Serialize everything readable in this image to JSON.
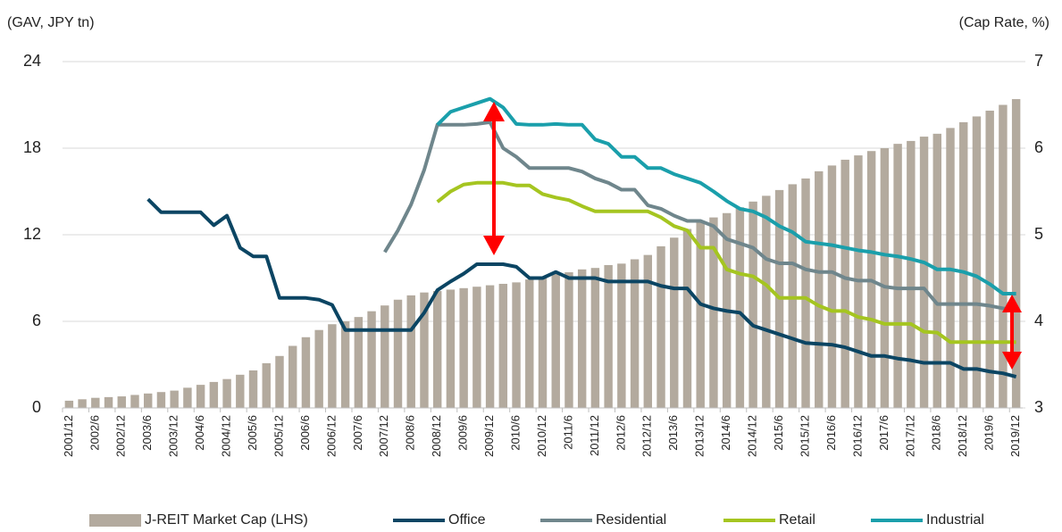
{
  "chart_data": {
    "type": "bar",
    "y_label": "(GAV, JPY tn)",
    "y2_label": "(Cap Rate, %)",
    "categories": [
      "2001/12",
      null,
      "2002/6",
      null,
      "2002/12",
      null,
      "2003/6",
      null,
      "2003/12",
      null,
      "2004/6",
      null,
      "2004/12",
      null,
      "2005/6",
      null,
      "2005/12",
      null,
      "2006/6",
      null,
      "2006/12",
      null,
      "2007/6",
      null,
      "2007/12",
      null,
      "2008/6",
      null,
      "2008/12",
      null,
      "2009/6",
      null,
      "2009/12",
      null,
      "2010/6",
      null,
      "2010/12",
      null,
      "2011/6",
      null,
      "2011/12",
      null,
      "2012/6",
      null,
      "2012/12",
      null,
      "2013/6",
      null,
      "2013/12",
      null,
      "2014/6",
      null,
      "2014/12",
      null,
      "2015/6",
      null,
      "2015/12",
      null,
      "2016/6",
      null,
      "2016/12",
      null,
      "2017/6",
      null,
      "2017/12",
      null,
      "2018/6",
      null,
      "2018/12",
      null,
      "2019/6",
      null,
      "2019/12"
    ],
    "ylim": [
      0,
      24
    ],
    "yticks": [
      0,
      6,
      12,
      18,
      24
    ],
    "y2lim": [
      3,
      7
    ],
    "y2ticks": [
      3,
      4,
      5,
      6,
      7
    ],
    "grid": true,
    "legend": "bottom",
    "series": [
      {
        "name": "J-REIT Market Cap (LHS)",
        "type": "bar",
        "color": "#b3aa9e",
        "values": [
          0.5,
          0.6,
          0.7,
          0.75,
          0.8,
          0.9,
          1.0,
          1.1,
          1.2,
          1.4,
          1.6,
          1.8,
          2.0,
          2.3,
          2.6,
          3.1,
          3.6,
          4.3,
          4.9,
          5.4,
          5.8,
          6.0,
          6.3,
          6.7,
          7.1,
          7.5,
          7.8,
          8.0,
          8.1,
          8.2,
          8.3,
          8.4,
          8.5,
          8.6,
          8.7,
          8.9,
          9.1,
          9.3,
          9.4,
          9.6,
          9.7,
          9.9,
          10.0,
          10.3,
          10.6,
          11.2,
          11.8,
          12.4,
          12.9,
          13.2,
          13.5,
          13.9,
          14.3,
          14.7,
          15.1,
          15.5,
          15.9,
          16.4,
          16.8,
          17.2,
          17.5,
          17.8,
          18.0,
          18.3,
          18.5,
          18.8,
          19.0,
          19.4,
          19.8,
          20.2,
          20.6,
          21.0,
          21.4
        ]
      },
      {
        "name": "Office",
        "type": "line",
        "axis": "y2",
        "color": "#0b4563",
        "values": [
          null,
          null,
          null,
          null,
          null,
          null,
          5.41,
          5.26,
          5.26,
          5.26,
          5.26,
          5.11,
          5.22,
          4.85,
          4.75,
          4.75,
          4.27,
          4.27,
          4.27,
          4.25,
          4.19,
          3.9,
          3.9,
          3.9,
          3.9,
          3.9,
          3.9,
          4.1,
          4.36,
          4.46,
          4.55,
          4.66,
          4.66,
          4.66,
          4.63,
          4.5,
          4.5,
          4.57,
          4.5,
          4.5,
          4.5,
          4.46,
          4.46,
          4.46,
          4.46,
          4.41,
          4.38,
          4.38,
          4.2,
          4.15,
          4.12,
          4.1,
          3.95,
          3.9,
          3.85,
          3.8,
          3.75,
          3.74,
          3.73,
          3.7,
          3.65,
          3.6,
          3.6,
          3.57,
          3.55,
          3.52,
          3.52,
          3.52,
          3.45,
          3.45,
          3.42,
          3.4,
          3.36
        ]
      },
      {
        "name": "Residential",
        "type": "line",
        "axis": "y2",
        "color": "#6f868c",
        "values": [
          null,
          null,
          null,
          null,
          null,
          null,
          null,
          null,
          null,
          null,
          null,
          null,
          null,
          null,
          null,
          null,
          null,
          null,
          null,
          null,
          null,
          null,
          null,
          null,
          4.8,
          5.05,
          5.35,
          5.75,
          6.27,
          6.27,
          6.27,
          6.28,
          6.3,
          6.0,
          5.9,
          5.77,
          5.77,
          5.77,
          5.77,
          5.73,
          5.65,
          5.6,
          5.52,
          5.52,
          5.34,
          5.3,
          5.22,
          5.16,
          5.16,
          5.1,
          4.95,
          4.9,
          4.85,
          4.72,
          4.67,
          4.67,
          4.6,
          4.57,
          4.57,
          4.5,
          4.47,
          4.47,
          4.4,
          4.38,
          4.38,
          4.38,
          4.2,
          4.2,
          4.2,
          4.2,
          4.18,
          4.15,
          4.13
        ]
      },
      {
        "name": "Retail",
        "type": "line",
        "axis": "y2",
        "color": "#a5c520",
        "values": [
          null,
          null,
          null,
          null,
          null,
          null,
          null,
          null,
          null,
          null,
          null,
          null,
          null,
          null,
          null,
          null,
          null,
          null,
          null,
          null,
          null,
          null,
          null,
          null,
          null,
          null,
          null,
          null,
          5.38,
          5.5,
          5.58,
          5.6,
          5.6,
          5.6,
          5.57,
          5.57,
          5.47,
          5.43,
          5.4,
          5.33,
          5.27,
          5.27,
          5.27,
          5.27,
          5.27,
          5.2,
          5.1,
          5.05,
          4.85,
          4.85,
          4.6,
          4.55,
          4.52,
          4.42,
          4.27,
          4.27,
          4.27,
          4.18,
          4.12,
          4.12,
          4.05,
          4.02,
          3.97,
          3.97,
          3.97,
          3.88,
          3.87,
          3.76,
          3.76,
          3.76,
          3.76,
          3.76,
          3.76
        ]
      },
      {
        "name": "Industrial",
        "type": "line",
        "axis": "y2",
        "color": "#1a9fab",
        "values": [
          null,
          null,
          null,
          null,
          null,
          null,
          null,
          null,
          null,
          null,
          null,
          null,
          null,
          null,
          null,
          null,
          null,
          null,
          null,
          null,
          null,
          null,
          null,
          null,
          null,
          null,
          null,
          null,
          6.27,
          6.42,
          6.47,
          6.52,
          6.57,
          6.47,
          6.28,
          6.27,
          6.27,
          6.28,
          6.27,
          6.27,
          6.1,
          6.05,
          5.9,
          5.9,
          5.77,
          5.77,
          5.7,
          5.65,
          5.6,
          5.5,
          5.39,
          5.3,
          5.27,
          5.2,
          5.1,
          5.03,
          4.92,
          4.9,
          4.88,
          4.85,
          4.82,
          4.8,
          4.77,
          4.75,
          4.72,
          4.68,
          4.6,
          4.6,
          4.57,
          4.52,
          4.43,
          4.32,
          4.32
        ]
      }
    ]
  }
}
